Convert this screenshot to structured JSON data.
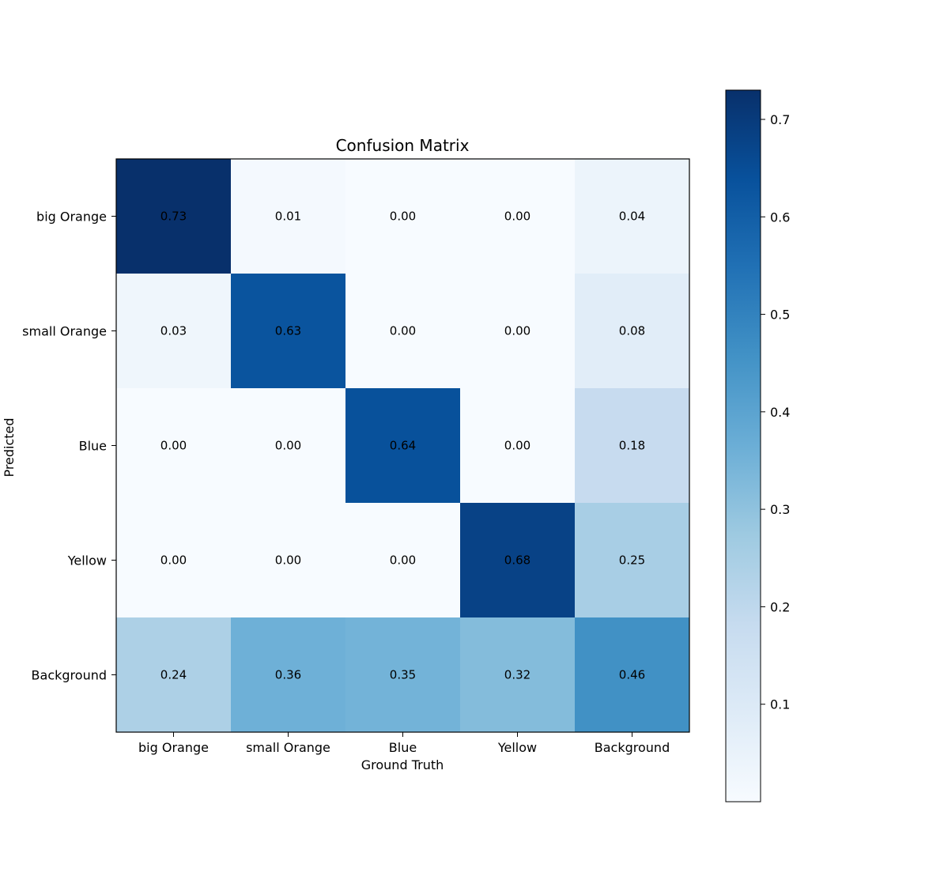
{
  "chart_data": {
    "type": "heatmap",
    "title": "Confusion Matrix",
    "xlabel": "Ground Truth",
    "ylabel": "Predicted",
    "x_categories": [
      "big Orange",
      "small Orange",
      "Blue",
      "Yellow",
      "Background"
    ],
    "y_categories": [
      "big Orange",
      "small Orange",
      "Blue",
      "Yellow",
      "Background"
    ],
    "values": [
      [
        0.73,
        0.01,
        0.0,
        0.0,
        0.04
      ],
      [
        0.03,
        0.63,
        0.0,
        0.0,
        0.08
      ],
      [
        0.0,
        0.0,
        0.64,
        0.0,
        0.18
      ],
      [
        0.0,
        0.0,
        0.0,
        0.68,
        0.25
      ],
      [
        0.24,
        0.36,
        0.35,
        0.32,
        0.46
      ]
    ],
    "value_labels": [
      [
        "0.73",
        "0.01",
        "0.00",
        "0.00",
        "0.04"
      ],
      [
        "0.03",
        "0.63",
        "0.00",
        "0.00",
        "0.08"
      ],
      [
        "0.00",
        "0.00",
        "0.64",
        "0.00",
        "0.18"
      ],
      [
        "0.00",
        "0.00",
        "0.00",
        "0.68",
        "0.25"
      ],
      [
        "0.24",
        "0.36",
        "0.35",
        "0.32",
        "0.46"
      ]
    ],
    "colormap": "Blues",
    "colorbar": {
      "range": [
        0.0,
        0.73
      ],
      "ticks": [
        0.1,
        0.2,
        0.3,
        0.4,
        0.5,
        0.6,
        0.7
      ],
      "tick_labels": [
        "0.1",
        "0.2",
        "0.3",
        "0.4",
        "0.5",
        "0.6",
        "0.7"
      ],
      "placement": "right"
    },
    "grid": false
  }
}
